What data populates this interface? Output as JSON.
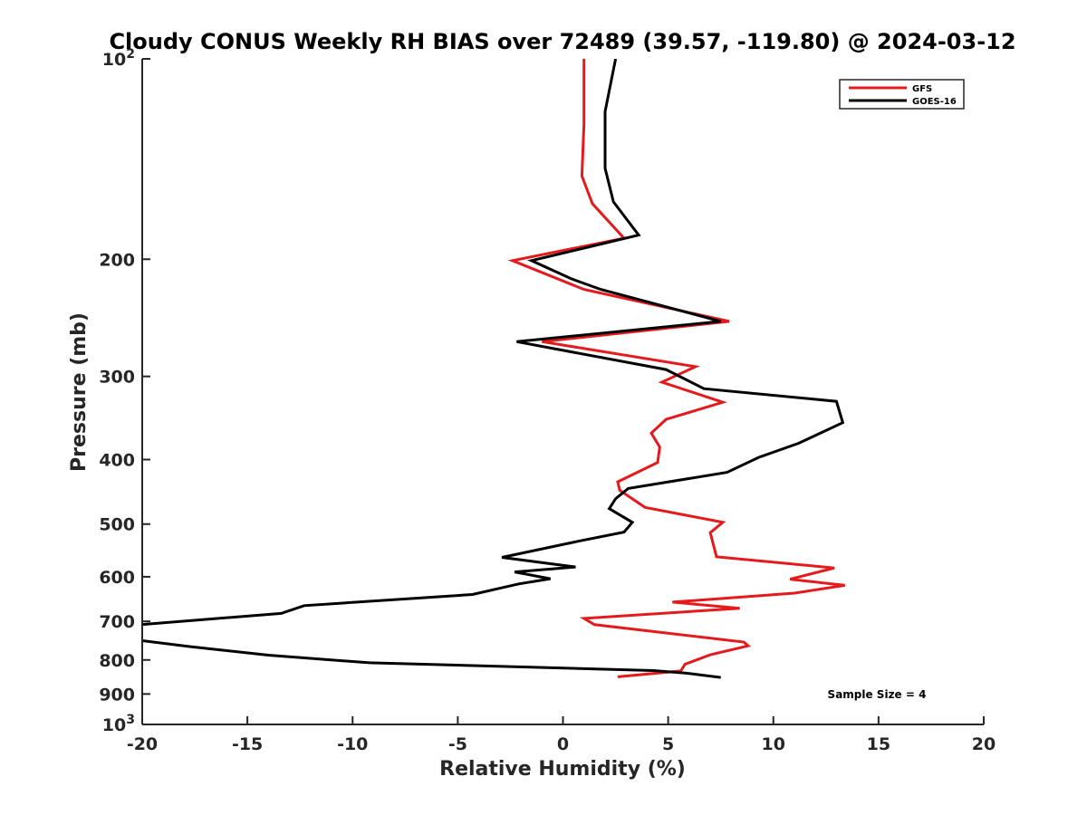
{
  "chart_data": {
    "type": "line",
    "title": "Cloudy CONUS Weekly RH BIAS over 72489 (39.57, -119.80) @ 2024-03-12",
    "xlabel": "Relative Humidity (%)",
    "ylabel": "Pressure (mb)",
    "xlim": [
      -20,
      20
    ],
    "ylim": [
      100,
      1000
    ],
    "yscale": "log",
    "yreversed": true,
    "x_ticks": [
      -20,
      -15,
      -10,
      -5,
      0,
      5,
      10,
      15,
      20
    ],
    "x_tick_labels": [
      "-20",
      "-15",
      "-10",
      "-5",
      "0",
      "5",
      "10",
      "15",
      "20"
    ],
    "y_ticks": [
      {
        "value": 100,
        "label": "10",
        "sup": "2"
      },
      {
        "value": 200,
        "label": "200",
        "sup": ""
      },
      {
        "value": 300,
        "label": "300",
        "sup": ""
      },
      {
        "value": 400,
        "label": "400",
        "sup": ""
      },
      {
        "value": 500,
        "label": "500",
        "sup": ""
      },
      {
        "value": 600,
        "label": "600",
        "sup": ""
      },
      {
        "value": 700,
        "label": "700",
        "sup": ""
      },
      {
        "value": 800,
        "label": "800",
        "sup": ""
      },
      {
        "value": 900,
        "label": "900",
        "sup": ""
      },
      {
        "value": 1000,
        "label": "10",
        "sup": "3"
      }
    ],
    "grid": false,
    "legend": "top-right",
    "annotation": "Sample Size = 4",
    "series": [
      {
        "name": "GFS",
        "color": "#e41a1c",
        "points": [
          [
            1.0,
            100
          ],
          [
            1.0,
            125
          ],
          [
            0.9,
            150
          ],
          [
            1.4,
            165
          ],
          [
            2.9,
            186
          ],
          [
            -2.4,
            201
          ],
          [
            1.0,
            222
          ],
          [
            7.9,
            248
          ],
          [
            -1.0,
            266
          ],
          [
            6.3,
            290
          ],
          [
            4.7,
            306
          ],
          [
            7.6,
            328
          ],
          [
            4.9,
            348
          ],
          [
            4.2,
            365
          ],
          [
            4.6,
            383
          ],
          [
            4.5,
            404
          ],
          [
            2.6,
            432
          ],
          [
            2.7,
            445
          ],
          [
            3.9,
            472
          ],
          [
            7.6,
            497
          ],
          [
            7.0,
            515
          ],
          [
            7.3,
            560
          ],
          [
            12.9,
            582
          ],
          [
            10.8,
            605
          ],
          [
            13.4,
            618
          ],
          [
            11.0,
            635
          ],
          [
            5.2,
            655
          ],
          [
            8.4,
            669
          ],
          [
            1.0,
            693
          ],
          [
            1.5,
            708
          ],
          [
            8.6,
            752
          ],
          [
            8.8,
            762
          ],
          [
            7.0,
            786
          ],
          [
            5.8,
            812
          ],
          [
            5.6,
            831
          ],
          [
            2.6,
            848
          ]
        ]
      },
      {
        "name": "GOES-16",
        "color": "#000000",
        "points": [
          [
            2.5,
            100
          ],
          [
            2.0,
            120
          ],
          [
            2.0,
            146
          ],
          [
            2.4,
            164
          ],
          [
            3.6,
            184
          ],
          [
            -1.5,
            201
          ],
          [
            0.4,
            214
          ],
          [
            1.8,
            222
          ],
          [
            7.5,
            248
          ],
          [
            -2.2,
            266
          ],
          [
            4.9,
            293
          ],
          [
            6.7,
            313
          ],
          [
            13.0,
            327
          ],
          [
            13.3,
            352
          ],
          [
            11.2,
            378
          ],
          [
            9.3,
            397
          ],
          [
            7.8,
            418
          ],
          [
            3.1,
            442
          ],
          [
            2.5,
            458
          ],
          [
            2.2,
            474
          ],
          [
            3.3,
            497
          ],
          [
            2.9,
            514
          ],
          [
            0.8,
            530
          ],
          [
            -2.9,
            561
          ],
          [
            0.6,
            580
          ],
          [
            -2.3,
            590
          ],
          [
            -0.6,
            604
          ],
          [
            -2.1,
            615
          ],
          [
            -4.3,
            638
          ],
          [
            -12.3,
            663
          ],
          [
            -13.4,
            681
          ],
          [
            -20.1,
            708
          ],
          [
            -20.2,
            747
          ],
          [
            -17.7,
            764
          ],
          [
            -14.0,
            787
          ],
          [
            -9.2,
            808
          ],
          [
            4.3,
            830
          ],
          [
            5.8,
            837
          ],
          [
            7.5,
            850
          ]
        ]
      }
    ]
  }
}
